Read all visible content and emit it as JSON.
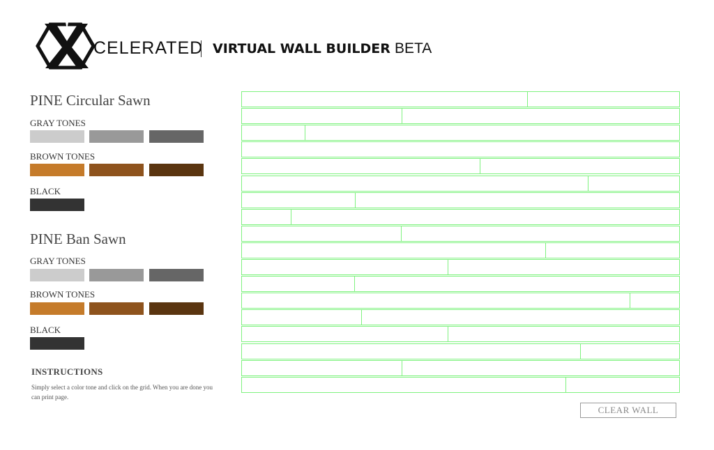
{
  "header": {
    "logo_text": "CELERATED",
    "title_bold": "VIRTUAL WALL BUILDER",
    "title_suffix": "BETA"
  },
  "sidebar": {
    "sections": [
      {
        "title": "PINE Circular Sawn",
        "groups": [
          {
            "label": "GRAY TONES",
            "swatches": [
              "#cccccc",
              "#999999",
              "#666666"
            ]
          },
          {
            "label": "BROWN TONES",
            "swatches": [
              "#c57b2a",
              "#8e531d",
              "#5a3510"
            ]
          },
          {
            "label": "BLACK",
            "swatches": [
              "#333333"
            ]
          }
        ]
      },
      {
        "title": "PINE Ban Sawn",
        "groups": [
          {
            "label": "GRAY TONES",
            "swatches": [
              "#cccccc",
              "#999999",
              "#666666"
            ]
          },
          {
            "label": "BROWN TONES",
            "swatches": [
              "#c57b2a",
              "#8e531d",
              "#5a3510"
            ]
          },
          {
            "label": "BLACK",
            "swatches": [
              "#333333"
            ]
          }
        ]
      }
    ],
    "instructions": {
      "heading": "INSTRUCTIONS",
      "text": "Simply select a color tone and click on the grid. When you are done you can print page."
    }
  },
  "wall": {
    "grid_color": "#7ef27e",
    "rows": [
      [
        0.653,
        0.347
      ],
      [
        0.366,
        0.634
      ],
      [
        0.143,
        0.857
      ],
      [
        1.0
      ],
      [
        0.544,
        0.456
      ],
      [
        0.791,
        0.209
      ],
      [
        0.259,
        0.741
      ],
      [
        0.111,
        0.889
      ],
      [
        0.363,
        0.637
      ],
      [
        0.694,
        0.306
      ],
      [
        0.471,
        0.529
      ],
      [
        0.257,
        0.743
      ],
      [
        0.887,
        0.113
      ],
      [
        0.272,
        0.728
      ],
      [
        0.471,
        0.529
      ],
      [
        0.774,
        0.226
      ],
      [
        0.365,
        0.635
      ],
      [
        0.74,
        0.26
      ]
    ]
  },
  "actions": {
    "clear_label": "CLEAR WALL"
  }
}
